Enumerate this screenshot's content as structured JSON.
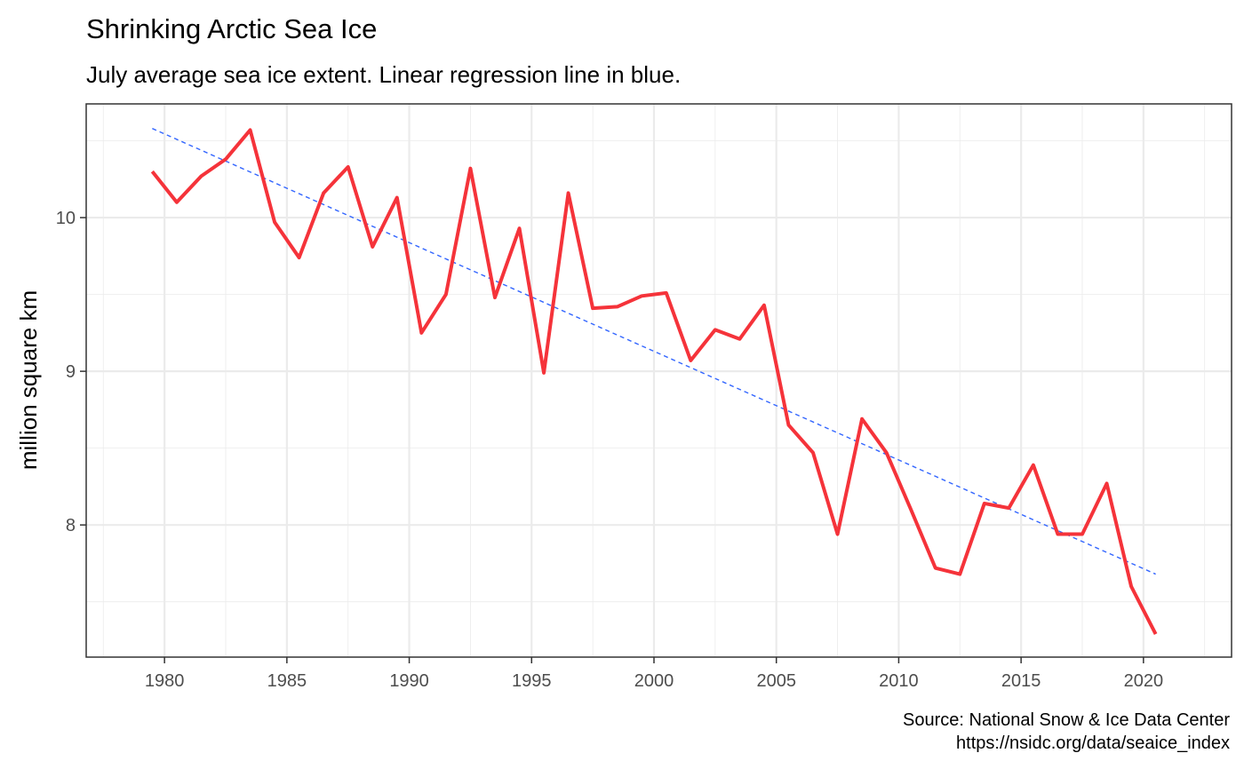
{
  "chart_data": {
    "type": "line",
    "title": "Shrinking Arctic Sea Ice",
    "subtitle": "July average sea ice extent. Linear regression line in blue.",
    "xlabel": "",
    "ylabel": "million square km",
    "caption_lines": [
      "Source: National Snow & Ice Data Center",
      "https://nsidc.org/data/seaice_index"
    ],
    "xlim": [
      1976.8,
      2023.6
    ],
    "ylim": [
      7.14,
      10.74
    ],
    "x_ticks": [
      1980,
      1985,
      1990,
      1995,
      2000,
      2005,
      2010,
      2015,
      2020
    ],
    "y_ticks": [
      8,
      9,
      10
    ],
    "grid": true,
    "colors": {
      "series": "#f5333a",
      "regression": "#3366ff",
      "grid": "#ebebeb",
      "panel_border": "#333333"
    },
    "series": [
      {
        "x": [
          1979.5,
          1980.5,
          1981.5,
          1982.5,
          1983.5,
          1984.5,
          1985.5,
          1986.5,
          1987.5,
          1988.5,
          1989.5,
          1990.5,
          1991.5,
          1992.5,
          1993.5,
          1994.5,
          1995.5,
          1996.5,
          1997.5,
          1998.5,
          1999.5,
          2000.5,
          2001.5,
          2002.5,
          2003.5,
          2004.5,
          2005.5,
          2006.5,
          2007.5,
          2008.5,
          2009.5,
          2010.5,
          2011.5,
          2012.5,
          2013.5,
          2014.5,
          2015.5,
          2016.5,
          2017.5,
          2018.5,
          2019.5,
          2020.5
        ],
        "values": [
          10.3,
          10.1,
          10.27,
          10.38,
          10.57,
          9.97,
          9.74,
          10.16,
          10.33,
          9.81,
          10.13,
          9.25,
          9.5,
          10.32,
          9.48,
          9.93,
          8.99,
          10.16,
          9.41,
          9.42,
          9.49,
          9.51,
          9.07,
          9.27,
          9.21,
          9.43,
          8.65,
          8.47,
          7.94,
          8.69,
          8.47,
          8.1,
          7.72,
          7.68,
          8.14,
          8.11,
          8.39,
          7.94,
          7.94,
          8.27,
          7.6,
          7.29
        ]
      }
    ],
    "regression": {
      "x": [
        1979.5,
        2020.5
      ],
      "values": [
        10.58,
        7.68
      ]
    }
  }
}
